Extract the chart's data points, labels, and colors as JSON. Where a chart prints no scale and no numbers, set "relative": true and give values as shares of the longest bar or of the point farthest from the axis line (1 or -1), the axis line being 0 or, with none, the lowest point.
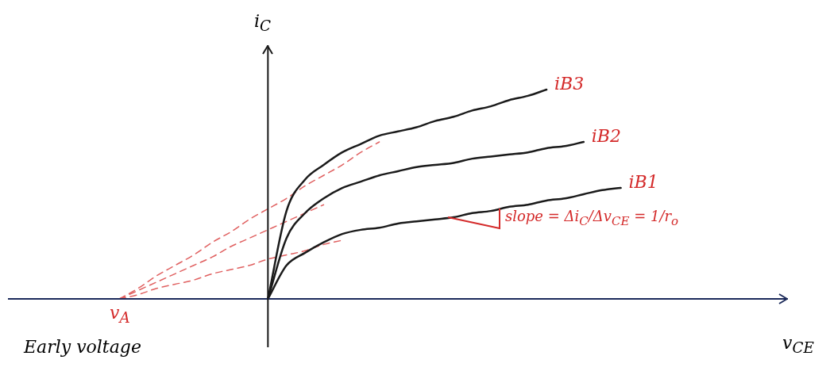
{
  "chart_data": {
    "type": "line",
    "relative": true,
    "xlabel": "v$_{CE}$",
    "ylabel": "i$_{C}$",
    "legend": false,
    "marker": "none",
    "line_style": "solid",
    "categories": [
      null,
      null,
      null,
      null,
      null,
      null,
      null,
      null,
      null,
      null,
      null,
      null,
      null,
      null,
      null,
      null,
      null,
      null,
      null,
      null,
      null,
      null,
      null,
      null,
      null,
      null,
      null,
      null,
      null,
      null,
      null,
      null,
      null,
      null,
      null,
      null,
      null,
      null,
      null,
      null,
      null,
      null,
      null
    ],
    "series": [
      {
        "name": "iB3",
        "color": "#1a1a1a",
        "values": [
          null,
          null,
          null,
          null,
          null,
          null,
          null,
          null,
          null,
          null,
          null,
          null,
          null,
          null,
          0,
          0.42,
          0.57,
          0.64,
          0.7,
          0.74,
          0.78,
          0.8,
          0.82,
          0.85,
          0.87,
          0.9,
          0.92,
          0.95,
          0.97,
          1,
          null,
          null,
          null,
          null,
          null,
          null,
          null,
          null,
          null,
          null,
          null,
          null,
          null
        ]
      },
      {
        "name": "iB2",
        "color": "#1a1a1a",
        "values": [
          null,
          null,
          null,
          null,
          null,
          null,
          null,
          null,
          null,
          null,
          null,
          null,
          null,
          null,
          0,
          0.29,
          0.41,
          0.48,
          0.53,
          0.56,
          0.59,
          0.61,
          0.63,
          0.64,
          0.65,
          0.67,
          0.68,
          0.69,
          0.7,
          0.72,
          0.73,
          0.75,
          null,
          null,
          null,
          null,
          null,
          null,
          null,
          null,
          null,
          null,
          null
        ]
      },
      {
        "name": "iB1",
        "color": "#1a1a1a",
        "values": [
          null,
          null,
          null,
          null,
          null,
          null,
          null,
          null,
          null,
          null,
          null,
          null,
          null,
          null,
          0,
          0.16,
          0.22,
          0.27,
          0.31,
          0.33,
          0.34,
          0.36,
          0.37,
          0.38,
          0.39,
          0.41,
          0.42,
          0.44,
          0.45,
          0.47,
          0.48,
          0.5,
          0.52,
          0.53,
          null,
          null,
          null,
          null,
          null,
          null,
          null,
          null,
          null
        ]
      },
      {
        "color": "#e06060",
        "line_style": "dashed",
        "values": [
          null,
          null,
          null,
          null,
          null,
          null,
          0,
          0.05,
          0.11,
          0.16,
          0.21,
          0.27,
          0.32,
          0.38,
          0.43,
          0.48,
          0.54,
          0.59,
          0.64,
          0.7,
          0.75,
          null,
          null,
          null,
          null,
          null,
          null,
          null,
          null,
          null,
          null,
          null,
          null,
          null,
          null,
          null,
          null,
          null,
          null,
          null,
          null,
          null,
          null
        ]
      },
      {
        "color": "#e06060",
        "line_style": "dashed",
        "values": [
          null,
          null,
          null,
          null,
          null,
          null,
          0,
          0.04,
          0.08,
          0.12,
          0.16,
          0.2,
          0.25,
          0.29,
          0.33,
          0.37,
          0.41,
          0.45,
          null,
          null,
          null,
          null,
          null,
          null,
          null,
          null,
          null,
          null,
          null,
          null,
          null,
          null,
          null,
          null,
          null,
          null,
          null,
          null,
          null,
          null,
          null,
          null,
          null
        ]
      },
      {
        "color": "#e06060",
        "line_style": "dashed",
        "values": [
          null,
          null,
          null,
          null,
          null,
          null,
          0,
          0.02,
          0.05,
          0.07,
          0.09,
          0.12,
          0.14,
          0.16,
          0.19,
          0.21,
          0.23,
          0.26,
          0.28,
          null,
          null,
          null,
          null,
          null,
          null,
          null,
          null,
          null,
          null,
          null,
          null,
          null,
          null,
          null,
          null,
          null,
          null,
          null,
          null,
          null,
          null,
          null,
          null
        ]
      }
    ],
    "annotations": [
      "v$_{A}$",
      "Early voltage",
      "slope = Δi$_{C}$/Δv$_{CE}$ = 1/r$_{o}$"
    ]
  }
}
